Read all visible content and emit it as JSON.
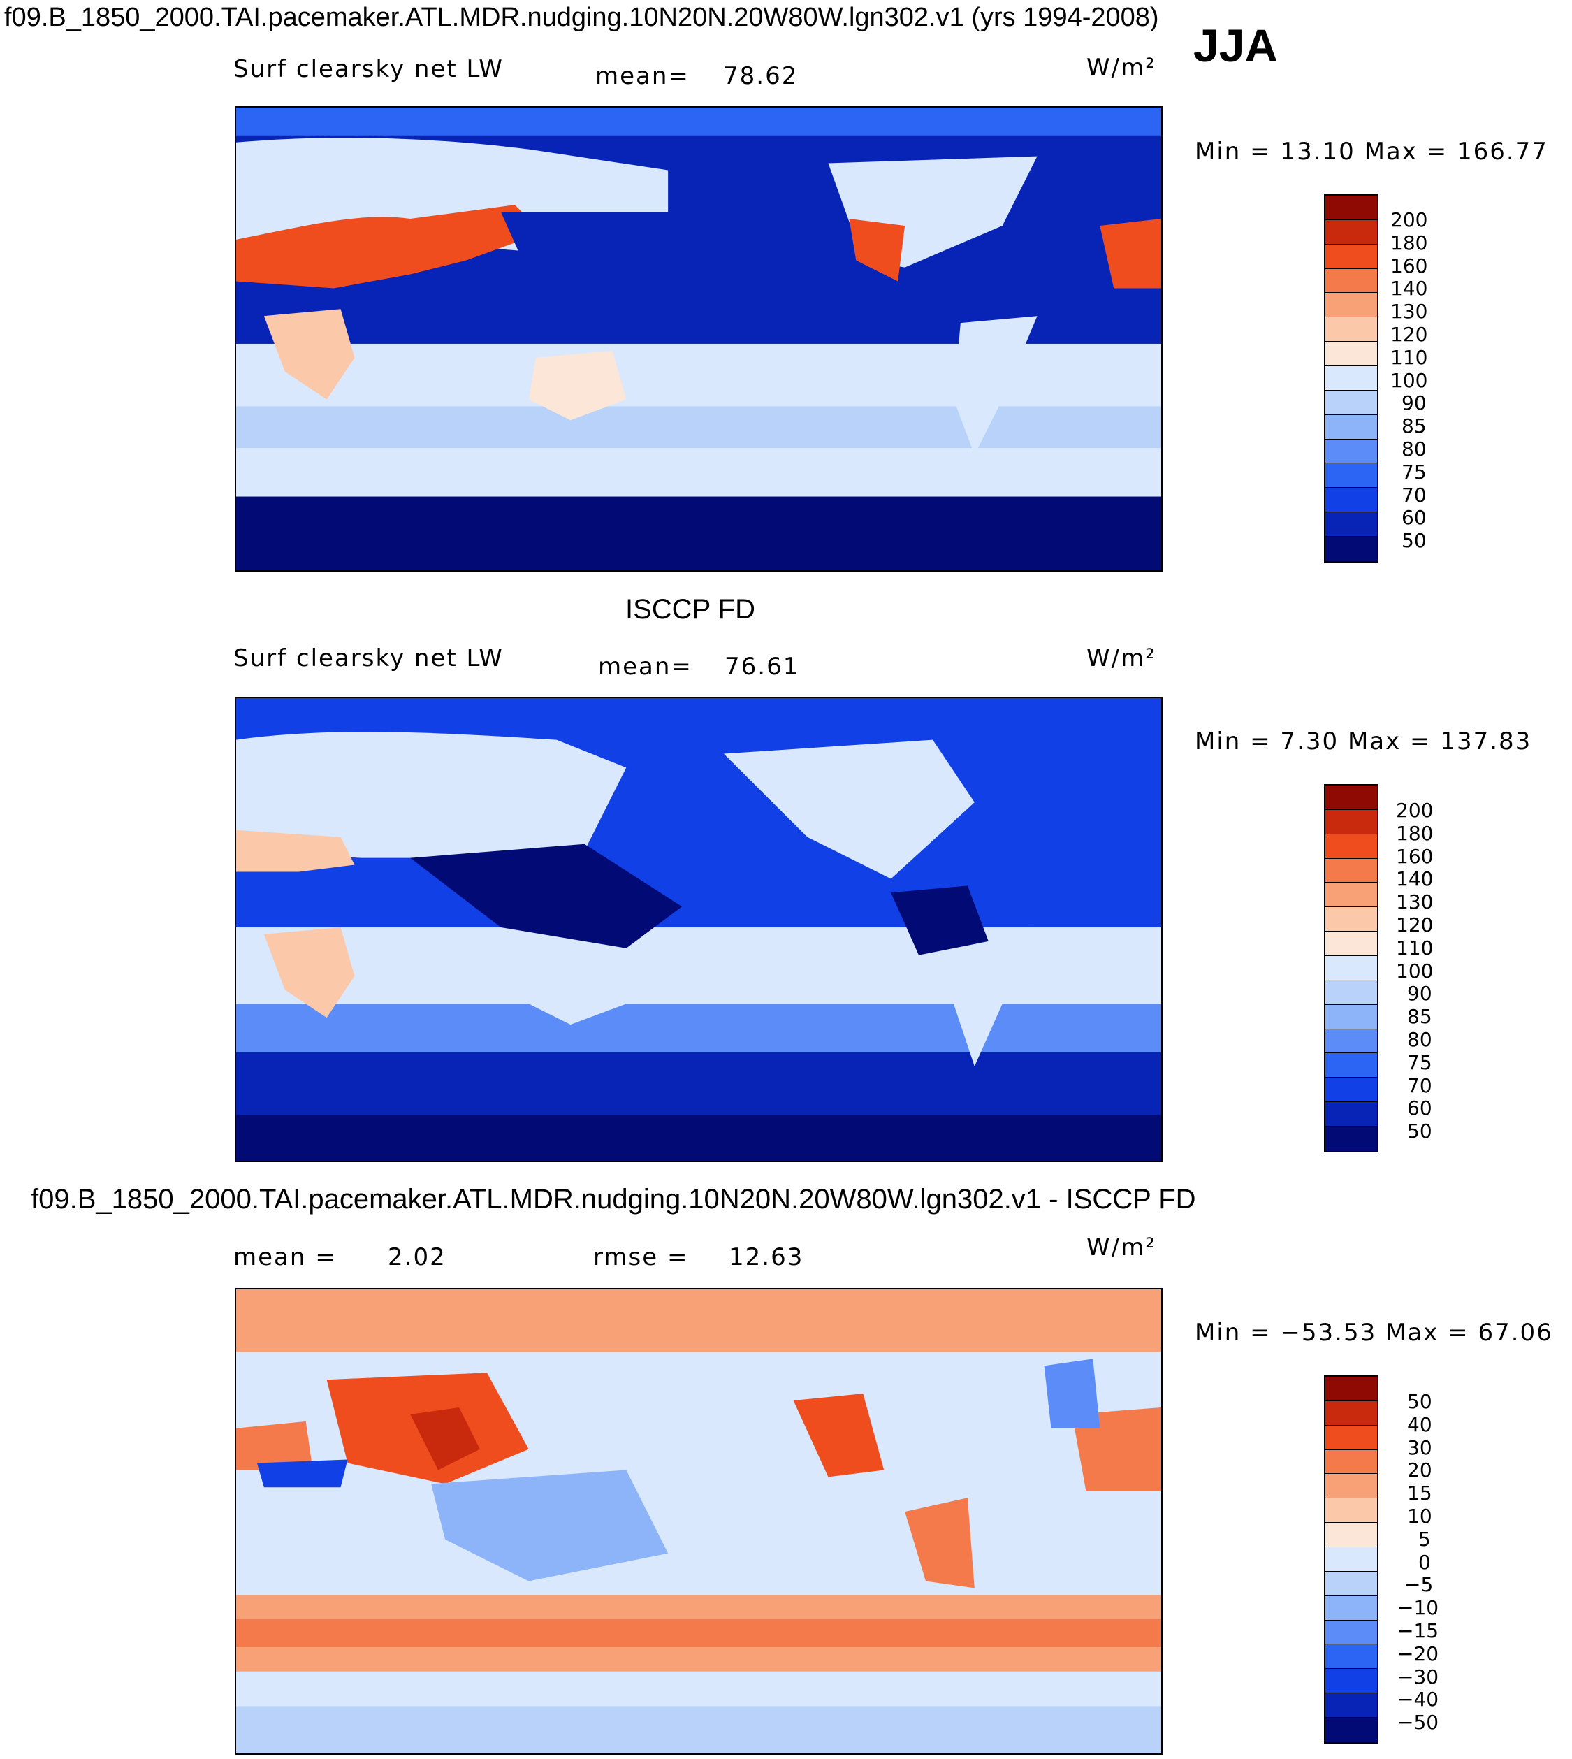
{
  "figure": {
    "main_title": "f09.B_1850_2000.TAI.pacemaker.ATL.MDR.nudging.10N20N.20W80W.lgn302.v1 (yrs 1994-2008)",
    "season": "JJA",
    "colors": {
      "abs_scale": [
        "#020b75",
        "#0824b6",
        "#1040e6",
        "#2c64f4",
        "#5b8cf7",
        "#8db3f8",
        "#b8d2fa",
        "#d9e8fc",
        "#fbe6d8",
        "#fbc8a9",
        "#f9a176",
        "#f57a4b",
        "#ef4d1e",
        "#c9290c",
        "#8e0a02"
      ],
      "diff_scale": [
        "#020b75",
        "#0824b6",
        "#1040e6",
        "#2c64f4",
        "#5b8cf7",
        "#8db3f8",
        "#b8d2fa",
        "#d9e8fc",
        "#fbe6d8",
        "#fbc8a9",
        "#f9a176",
        "#f57a4b",
        "#ef4d1e",
        "#c9290c",
        "#8e0a02"
      ]
    }
  },
  "panels": [
    {
      "id": "model",
      "header": "",
      "variable": "Surf clearsky net LW",
      "stat_label": "mean=",
      "stat_value": "78.62",
      "units": "W/m²",
      "range": "Min =   13.10 Max =  166.77",
      "colorbar_labels": [
        "200",
        "180",
        "160",
        "140",
        "130",
        "120",
        "110",
        "100",
        "90",
        "85",
        "80",
        "75",
        "70",
        "60",
        "50"
      ]
    },
    {
      "id": "obs",
      "header": "ISCCP FD",
      "variable": "Surf clearsky net LW",
      "stat_label": "mean=",
      "stat_value": "76.61",
      "units": "W/m²",
      "range": "Min =    7.30 Max =  137.83",
      "colorbar_labels": [
        "200",
        "180",
        "160",
        "140",
        "130",
        "120",
        "110",
        "100",
        "90",
        "85",
        "80",
        "75",
        "70",
        "60",
        "50"
      ]
    },
    {
      "id": "diff",
      "header": "f09.B_1850_2000.TAI.pacemaker.ATL.MDR.nudging.10N20N.20W80W.lgn302.v1 - ISCCP FD",
      "mean_label": "mean =",
      "mean_value": "2.02",
      "rmse_label": "rmse =",
      "rmse_value": "12.63",
      "units": "W/m²",
      "range": "Min = −53.53 Max =   67.06",
      "colorbar_labels": [
        "50",
        "40",
        "30",
        "20",
        "15",
        "10",
        "5",
        "0",
        "−5",
        "−10",
        "−15",
        "−20",
        "−30",
        "−40",
        "−50"
      ]
    }
  ]
}
